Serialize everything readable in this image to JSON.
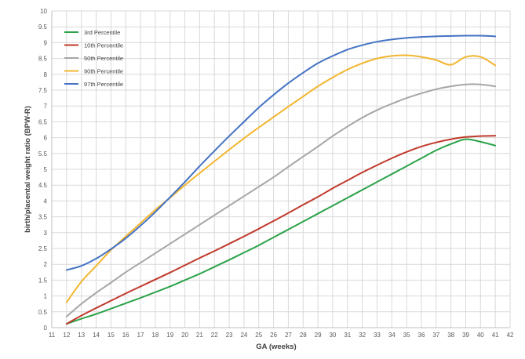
{
  "chart_data": {
    "type": "line",
    "title": "",
    "xlabel": "GA (weeks)",
    "ylabel": "birth/placental weight ratio (BPW-R)",
    "xlim": [
      11,
      42
    ],
    "ylim": [
      0,
      10
    ],
    "xticks": [
      11,
      12,
      13,
      14,
      15,
      16,
      17,
      18,
      19,
      20,
      21,
      22,
      23,
      24,
      25,
      26,
      27,
      28,
      29,
      30,
      31,
      32,
      33,
      34,
      35,
      36,
      37,
      38,
      39,
      40,
      41,
      42
    ],
    "yticks": [
      0,
      0.5,
      1,
      1.5,
      2,
      2.5,
      3,
      3.5,
      4,
      4.5,
      5,
      5.5,
      6,
      6.5,
      7,
      7.5,
      8,
      8.5,
      9,
      9.5,
      10
    ],
    "grid": true,
    "legend_position": "top-left",
    "x": [
      12,
      13,
      14,
      15,
      16,
      17,
      18,
      19,
      20,
      21,
      22,
      23,
      24,
      25,
      26,
      27,
      28,
      29,
      30,
      31,
      32,
      33,
      34,
      35,
      36,
      37,
      38,
      39,
      40,
      41
    ],
    "series": [
      {
        "name": "3rd Percentile",
        "color": "#2ca24a",
        "values": [
          0.12,
          0.28,
          0.43,
          0.6,
          0.77,
          0.94,
          1.12,
          1.3,
          1.5,
          1.7,
          1.92,
          2.14,
          2.37,
          2.6,
          2.85,
          3.1,
          3.35,
          3.6,
          3.85,
          4.1,
          4.35,
          4.6,
          4.85,
          5.1,
          5.35,
          5.6,
          5.8,
          5.95,
          5.87,
          5.75
        ]
      },
      {
        "name": "10th Percentile",
        "color": "#c0392b",
        "values": [
          0.12,
          0.38,
          0.62,
          0.85,
          1.08,
          1.3,
          1.52,
          1.74,
          1.97,
          2.2,
          2.42,
          2.65,
          2.88,
          3.12,
          3.37,
          3.62,
          3.88,
          4.13,
          4.4,
          4.65,
          4.9,
          5.13,
          5.35,
          5.55,
          5.72,
          5.85,
          5.95,
          6.02,
          6.05,
          6.06
        ]
      },
      {
        "name": "50th Percentile",
        "color": "#a6a6a6",
        "values": [
          0.35,
          0.75,
          1.1,
          1.42,
          1.75,
          2.05,
          2.35,
          2.65,
          2.95,
          3.25,
          3.55,
          3.85,
          4.15,
          4.45,
          4.75,
          5.08,
          5.4,
          5.72,
          6.05,
          6.35,
          6.63,
          6.87,
          7.07,
          7.25,
          7.4,
          7.53,
          7.62,
          7.68,
          7.68,
          7.62
        ]
      },
      {
        "name": "90th Percentile",
        "color": "#f2b630",
        "values": [
          0.8,
          1.45,
          1.95,
          2.45,
          2.88,
          3.3,
          3.72,
          4.1,
          4.5,
          4.88,
          5.25,
          5.62,
          5.98,
          6.32,
          6.65,
          6.98,
          7.3,
          7.62,
          7.9,
          8.15,
          8.35,
          8.5,
          8.58,
          8.6,
          8.55,
          8.45,
          8.3,
          8.55,
          8.55,
          8.28
        ]
      },
      {
        "name": "97th Percentile",
        "color": "#4472c4",
        "values": [
          1.82,
          1.95,
          2.18,
          2.48,
          2.82,
          3.22,
          3.65,
          4.12,
          4.6,
          5.1,
          5.58,
          6.05,
          6.5,
          6.95,
          7.35,
          7.72,
          8.05,
          8.35,
          8.58,
          8.78,
          8.92,
          9.03,
          9.1,
          9.15,
          9.18,
          9.2,
          9.21,
          9.22,
          9.22,
          9.2
        ]
      }
    ]
  }
}
